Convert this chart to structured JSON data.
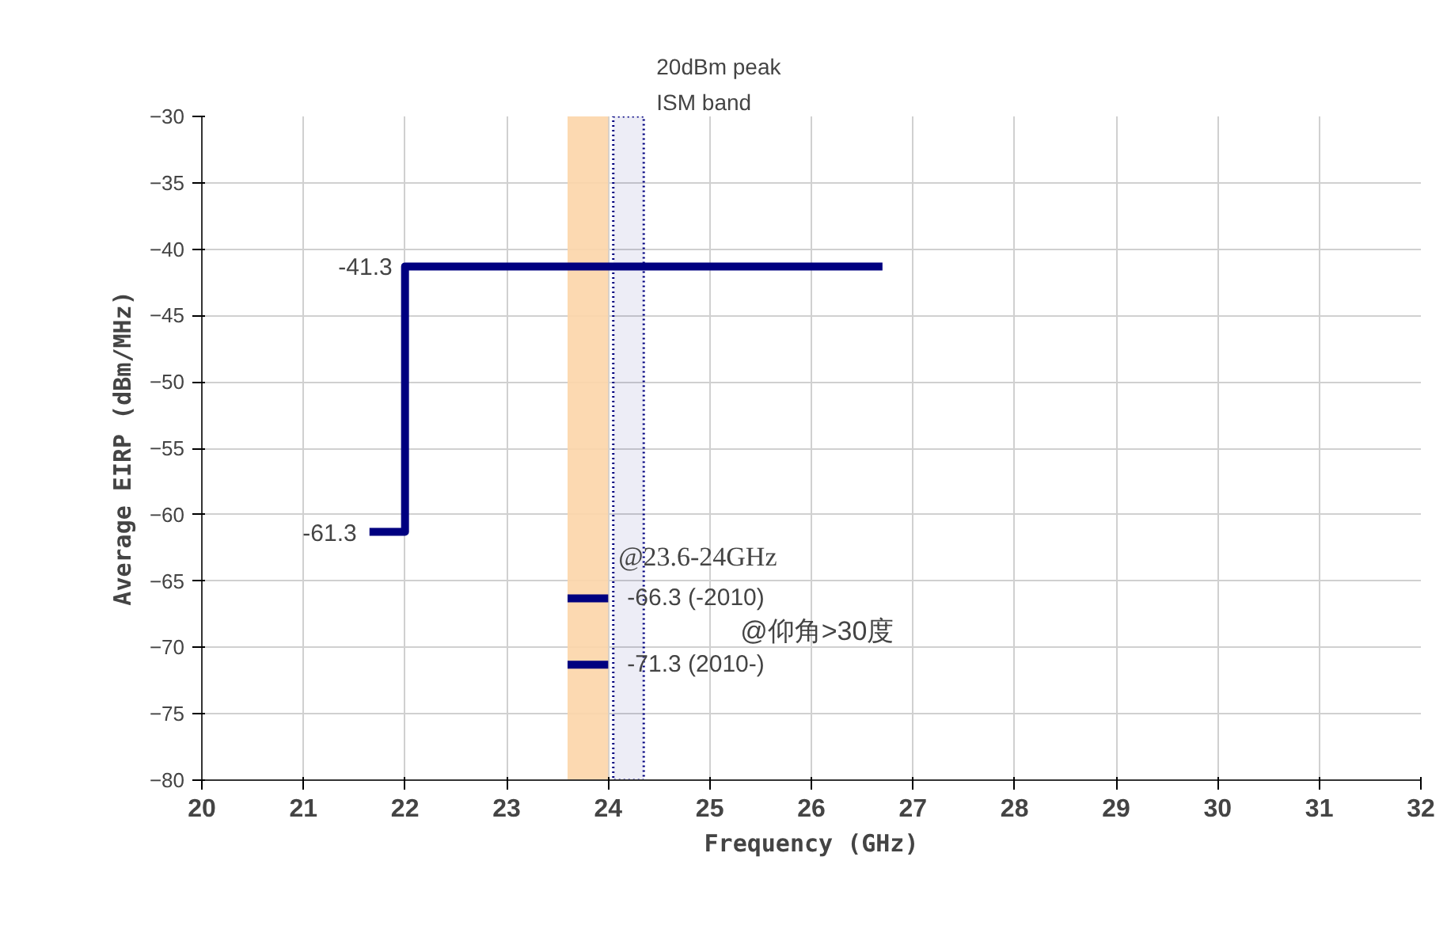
{
  "chart_data": {
    "type": "line",
    "xlabel": "Frequency (GHz)",
    "ylabel": "Average EIRP (dBm/MHz)",
    "xlim": [
      20,
      32
    ],
    "ylim": [
      -80,
      -30
    ],
    "xticks": [
      20,
      21,
      22,
      23,
      24,
      25,
      26,
      27,
      28,
      29,
      30,
      31,
      32
    ],
    "yticks": [
      -80,
      -75,
      -70,
      -65,
      -60,
      -55,
      -50,
      -45,
      -40,
      -35,
      -30
    ],
    "grid": true,
    "marker": "none",
    "series": [
      {
        "color": "#000080",
        "x": [
          21.65,
          22,
          22,
          26.7
        ],
        "values": [
          -61.3,
          -61.3,
          -41.3,
          -41.3
        ],
        "value_labels": [
          "-61.3",
          null,
          "-41.3",
          null
        ]
      },
      {
        "color": "#000080",
        "x": [
          23.6,
          24
        ],
        "values": [
          -66.3,
          -66.3
        ],
        "value_labels": [
          null,
          "-66.3 (-2010)"
        ]
      },
      {
        "color": "#000080",
        "x": [
          23.6,
          24
        ],
        "values": [
          -71.3,
          -71.3
        ],
        "value_labels": [
          null,
          "-71.3 (2010-)"
        ]
      }
    ],
    "bands": [
      {
        "axis": "x",
        "from": 23.6,
        "to": 24.0,
        "color": "#fcd5a8"
      },
      {
        "axis": "x",
        "from": 24.05,
        "to": 24.35,
        "color": "#000080",
        "label": "20dBm peak\nISM band"
      }
    ],
    "annotations": [
      "@23.6-24GHz",
      "@仰角>30度"
    ]
  }
}
